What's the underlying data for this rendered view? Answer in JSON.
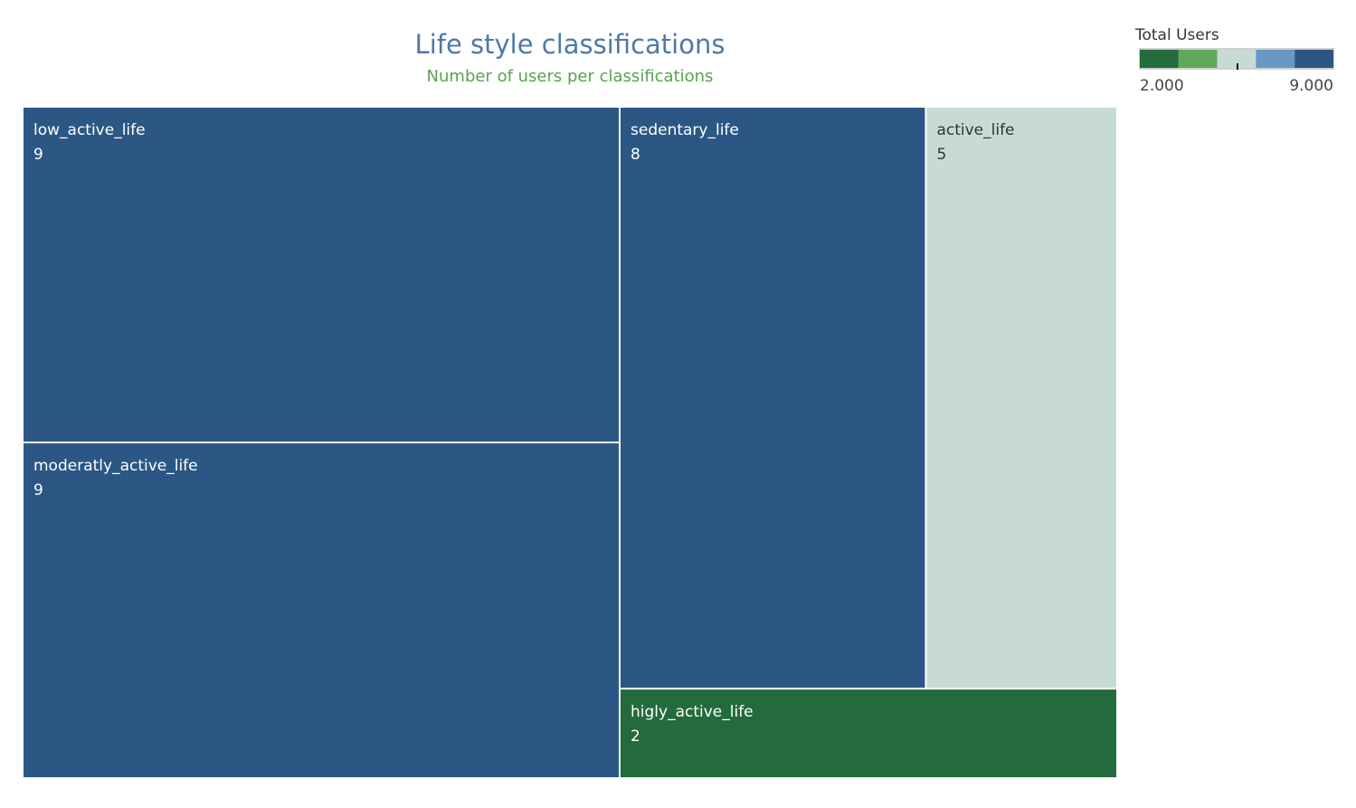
{
  "chart_data": {
    "type": "treemap",
    "title": "Life style classifications",
    "subtitle": "Number of users per classifications",
    "measure": "Total Users",
    "items": [
      {
        "label": "low_active_life",
        "value": 9
      },
      {
        "label": "moderatly_active_life",
        "value": 9
      },
      {
        "label": "sedentary_life",
        "value": 8
      },
      {
        "label": "active_life",
        "value": 5
      },
      {
        "label": "higly_active_life",
        "value": 2
      }
    ],
    "value_labels": [
      "9",
      "9",
      "8",
      "5",
      "2"
    ],
    "legend": {
      "title": "Total Users",
      "min": 2,
      "max": 9,
      "min_label": "2.000",
      "max_label": "9.000",
      "steps": [
        "#236b3c",
        "#62a85a",
        "#c8dbd3",
        "#6898c3",
        "#2c5784"
      ],
      "position": "top-right"
    }
  },
  "colors": {
    "title": "#4e79a7",
    "subtitle": "#59a14f",
    "dark_text": "#333333",
    "light_text": "#ffffff"
  }
}
